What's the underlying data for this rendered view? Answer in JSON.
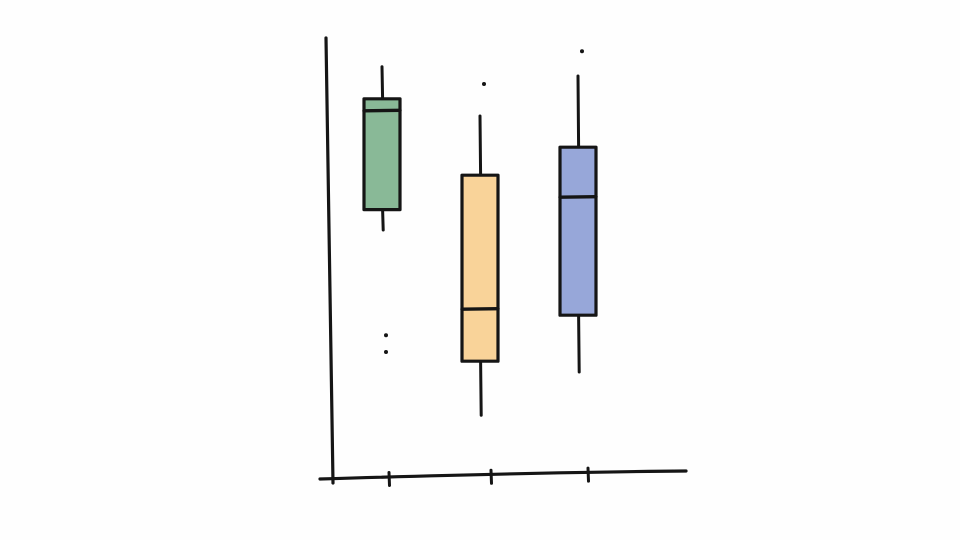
{
  "chart_data": {
    "type": "box",
    "title": "",
    "xlabel": "",
    "ylabel": "",
    "ylim": [
      0,
      100
    ],
    "grid": false,
    "legend": "none",
    "boxes": [
      {
        "color": "#7fb38e",
        "whisker_low": 52.5,
        "q1": 57.6,
        "median": 82.3,
        "q3": 85.3,
        "whisker_high": 93.3,
        "outliers": [
          26.2,
          22.0
        ]
      },
      {
        "color": "#f8cf90",
        "whisker_low": 6.2,
        "q1": 19.7,
        "median": 32.7,
        "q3": 66.2,
        "whisker_high": 81.0,
        "outliers": [
          89.0
        ]
      },
      {
        "color": "#8ea0d6",
        "whisker_low": 17.0,
        "q1": 31.2,
        "median": 60.7,
        "q3": 73.2,
        "whisker_high": 91.0,
        "outliers": [
          97.2
        ]
      }
    ]
  }
}
